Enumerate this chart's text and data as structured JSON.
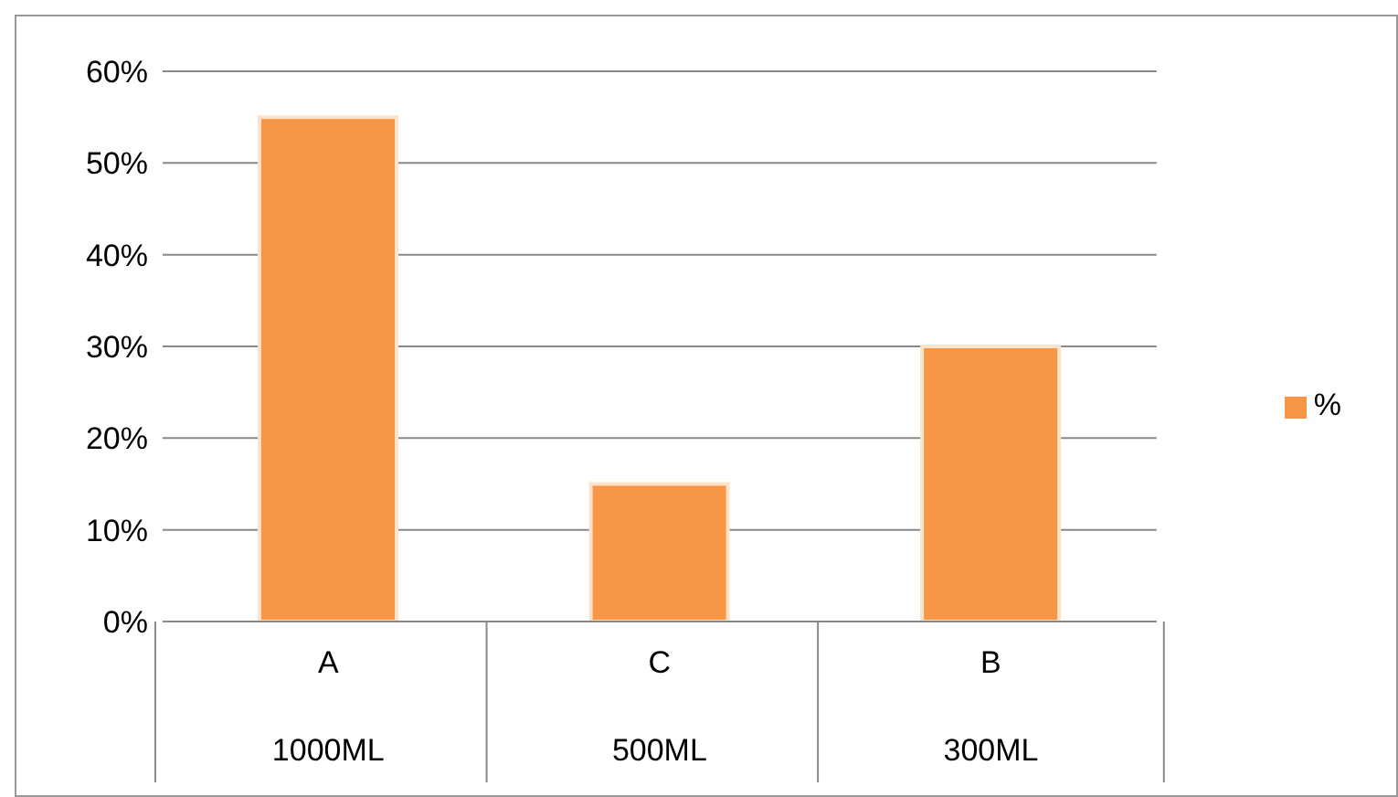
{
  "chart_data": {
    "type": "bar",
    "categories": [
      "A\n1000ML",
      "C\n500ML",
      "B\n300ML"
    ],
    "series": [
      {
        "name": "%",
        "color": "#f79646",
        "values": [
          55,
          15,
          30
        ]
      }
    ],
    "ylim": [
      0,
      60
    ],
    "yticks": [
      {
        "value": 0,
        "label": "0%"
      },
      {
        "value": 10,
        "label": "10%"
      },
      {
        "value": 20,
        "label": "20%"
      },
      {
        "value": 30,
        "label": "30%"
      },
      {
        "value": 40,
        "label": "40%"
      },
      {
        "value": 50,
        "label": "50%"
      },
      {
        "value": 60,
        "label": "60%"
      }
    ],
    "grid": "y",
    "legend": "right"
  }
}
